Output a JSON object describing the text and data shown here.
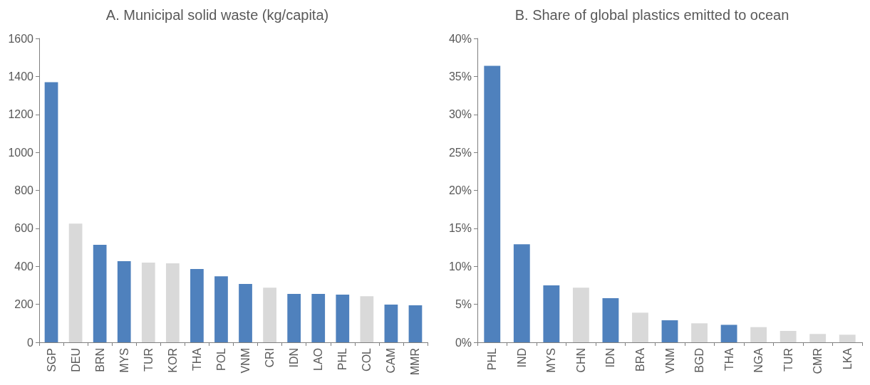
{
  "chart_data": [
    {
      "type": "bar",
      "title": "A. Municipal solid waste (kg/capita)",
      "categories": [
        "SGP",
        "DEU",
        "BRN",
        "MYS",
        "TUR",
        "KOR",
        "THA",
        "POL",
        "VNM",
        "CRI",
        "IDN",
        "LAO",
        "PHL",
        "COL",
        "CAM",
        "MMR"
      ],
      "values": [
        1370,
        625,
        513,
        427,
        420,
        416,
        386,
        348,
        307,
        288,
        255,
        255,
        251,
        243,
        199,
        195
      ],
      "colors": [
        "#4f81bd",
        "#d9d9d9",
        "#4f81bd",
        "#4f81bd",
        "#d9d9d9",
        "#d9d9d9",
        "#4f81bd",
        "#4f81bd",
        "#4f81bd",
        "#d9d9d9",
        "#4f81bd",
        "#4f81bd",
        "#4f81bd",
        "#d9d9d9",
        "#4f81bd",
        "#4f81bd"
      ],
      "ylim": [
        0,
        1600
      ],
      "yticks": [
        0,
        200,
        400,
        600,
        800,
        1000,
        1200,
        1400,
        1600
      ],
      "grid": false
    },
    {
      "type": "bar",
      "title": "B. Share of global plastics emitted to ocean",
      "categories": [
        "PHL",
        "IND",
        "MYS",
        "CHN",
        "IDN",
        "BRA",
        "VNM",
        "BGD",
        "THA",
        "NGA",
        "TUR",
        "CMR",
        "LKA"
      ],
      "values": [
        36.4,
        12.9,
        7.5,
        7.2,
        5.8,
        3.9,
        2.9,
        2.5,
        2.3,
        2.0,
        1.5,
        1.1,
        1.0
      ],
      "colors": [
        "#4f81bd",
        "#4f81bd",
        "#4f81bd",
        "#d9d9d9",
        "#4f81bd",
        "#d9d9d9",
        "#4f81bd",
        "#d9d9d9",
        "#4f81bd",
        "#d9d9d9",
        "#d9d9d9",
        "#d9d9d9",
        "#d9d9d9"
      ],
      "ylim": [
        0,
        40
      ],
      "yticks": [
        {
          "value": 0,
          "label": "0%"
        },
        {
          "value": 5,
          "label": "5%"
        },
        {
          "value": 10,
          "label": "10%"
        },
        {
          "value": 15,
          "label": "15%"
        },
        {
          "value": 20,
          "label": "20%"
        },
        {
          "value": 25,
          "label": "25%"
        },
        {
          "value": 30,
          "label": "30%"
        },
        {
          "value": 35,
          "label": "35%"
        },
        {
          "value": 40,
          "label": "40%"
        }
      ],
      "grid": false
    }
  ]
}
